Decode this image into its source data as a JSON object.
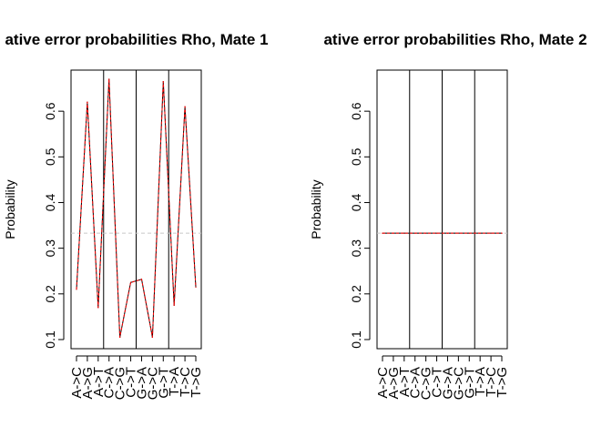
{
  "chart_data": [
    {
      "type": "line",
      "title": "ative error probabilities Rho, Mate 1",
      "ylabel": "Probability",
      "xlabel": "",
      "ylim": [
        0.08,
        0.69
      ],
      "yticks": [
        "0.1",
        "0.2",
        "0.3",
        "0.4",
        "0.5",
        "0.6"
      ],
      "categories": [
        "A->C",
        "A->G",
        "A->T",
        "C->A",
        "C->G",
        "C->T",
        "G->A",
        "G->C",
        "G->T",
        "T->A",
        "T->C",
        "T->G"
      ],
      "group_separators_after": [
        3,
        6,
        9
      ],
      "series": [
        {
          "color": "#000000",
          "dash": "solid",
          "values": [
            0.21,
            0.62,
            0.17,
            0.67,
            0.105,
            0.225,
            0.232,
            0.105,
            0.665,
            0.175,
            0.61,
            0.215
          ]
        },
        {
          "color": "#ff0000",
          "dash": "dashed",
          "values": [
            0.21,
            0.62,
            0.17,
            0.67,
            0.105,
            0.225,
            0.232,
            0.105,
            0.665,
            0.175,
            0.61,
            0.215
          ]
        }
      ],
      "hline": {
        "value": 0.333,
        "color": "#c8c8c8",
        "dash": "dashed"
      },
      "grid": false,
      "legend": "none"
    },
    {
      "type": "line",
      "title": "ative error probabilities Rho, Mate 2",
      "ylabel": "Probability",
      "xlabel": "",
      "ylim": [
        0.08,
        0.69
      ],
      "yticks": [
        "0.1",
        "0.2",
        "0.3",
        "0.4",
        "0.5",
        "0.6"
      ],
      "categories": [
        "A->C",
        "A->G",
        "A->T",
        "C->A",
        "C->G",
        "C->T",
        "G->A",
        "G->C",
        "G->T",
        "T->A",
        "T->C",
        "T->G"
      ],
      "group_separators_after": [
        3,
        6,
        9
      ],
      "series": [
        {
          "color": "#000000",
          "dash": "solid",
          "values": [
            0.333,
            0.333,
            0.333,
            0.333,
            0.333,
            0.333,
            0.333,
            0.333,
            0.333,
            0.333,
            0.333,
            0.333
          ]
        },
        {
          "color": "#ff0000",
          "dash": "dashed",
          "values": [
            0.333,
            0.333,
            0.333,
            0.333,
            0.333,
            0.333,
            0.333,
            0.333,
            0.333,
            0.333,
            0.333,
            0.333
          ]
        }
      ],
      "hline": {
        "value": 0.333,
        "color": "#c8c8c8",
        "dash": "dashed"
      },
      "grid": false,
      "legend": "none"
    }
  ]
}
